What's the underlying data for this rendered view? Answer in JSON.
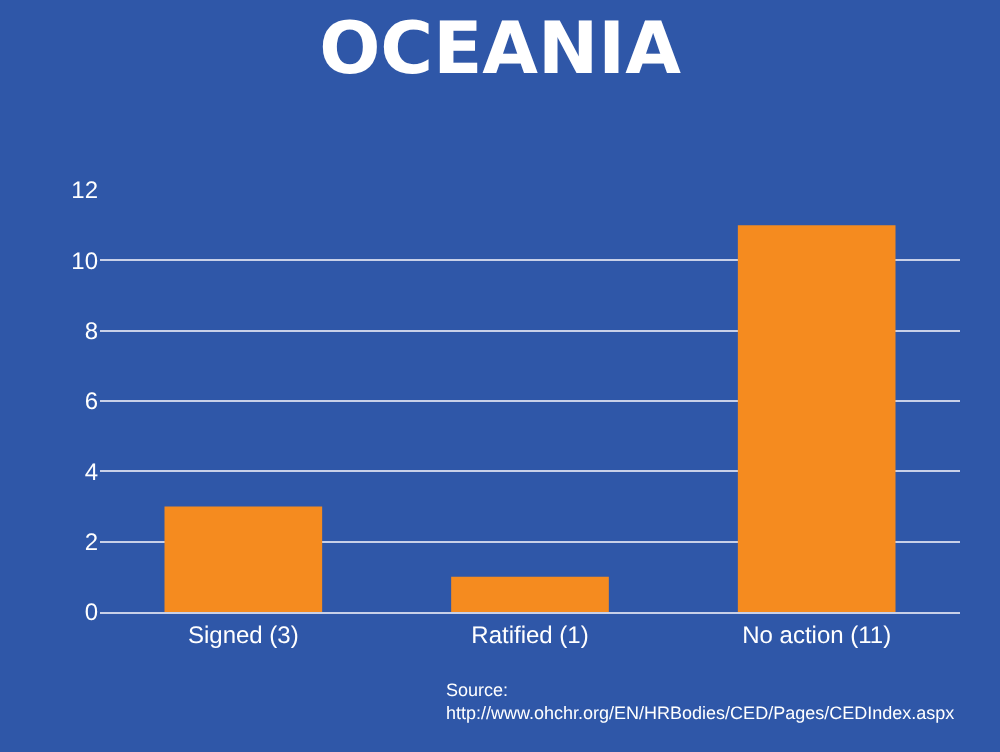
{
  "chart_data": {
    "type": "bar",
    "title": "OCEANIA",
    "categories": [
      "Signed (3)",
      "Ratified (1)",
      "No action (11)"
    ],
    "values": [
      3,
      1,
      11
    ],
    "color": "#f58b1f",
    "ylim": [
      0,
      12
    ],
    "yticks": [
      0,
      2,
      4,
      6,
      8,
      10,
      12
    ],
    "grid": "y",
    "legend": false,
    "annotations": [
      "Source:\nhttp://www.ohchr.org/EN/HRBodies/CED/Pages/CEDIndex.aspx"
    ]
  }
}
